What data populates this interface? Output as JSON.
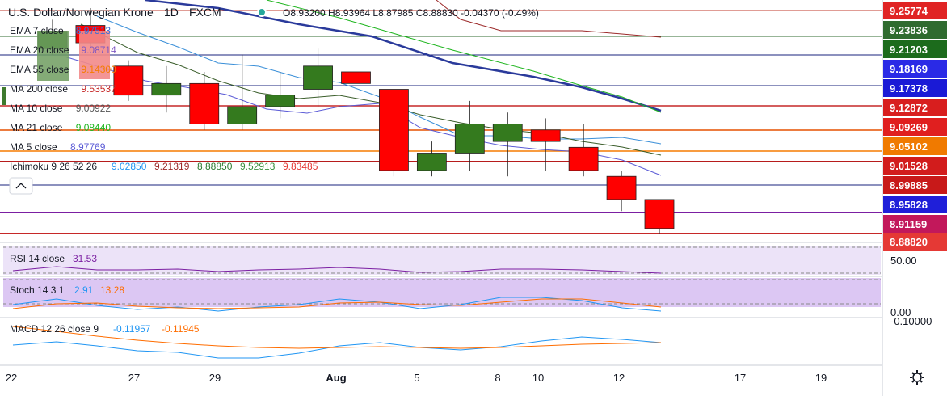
{
  "header": {
    "symbol": "U.S. Dollar/Norwegian Krone",
    "interval": "1D",
    "source": "FXCM",
    "ohlc": {
      "O": "8.93200",
      "H": "8.93964",
      "L": "8.87985",
      "C": "8.88830",
      "change": "-0.04370 (-0.49%)"
    },
    "ohlc_text": "O8.93200 H8.93964 L8.87985 C8.88830 -0.04370 (-0.49%)"
  },
  "legend": [
    {
      "label": "EMA 7 close",
      "value": "8.97513",
      "color": "#3a6fd8"
    },
    {
      "label": "EMA 20 close",
      "value": "9.08714",
      "color": "#7e57c2"
    },
    {
      "label": "EMA 55 close",
      "value": "9.14300",
      "color": "#f57c00"
    },
    {
      "label": "MA 200 close",
      "value": "9.53537",
      "color": "#c62828"
    },
    {
      "label": "MA 10 close",
      "value": "9.00922",
      "color": "#555555"
    },
    {
      "label": "MA 21 close",
      "value": "9.08440",
      "color": "#1eb51e"
    },
    {
      "label": "MA 5 close",
      "value": "8.97769",
      "color": "#5b5bd6"
    }
  ],
  "ichimoku": {
    "label": "Ichimoku 9 26 52 26",
    "values": [
      "9.02850",
      "9.21319",
      "8.88850",
      "9.52913",
      "9.83485"
    ],
    "colors": [
      "#2196f3",
      "#9c2a2a",
      "#2e7d32",
      "#388e3c",
      "#e53935"
    ]
  },
  "price_axis": [
    {
      "value": "9.25774",
      "bg": "#e02424"
    },
    {
      "value": "9.23836",
      "bg": "#2f6b2f"
    },
    {
      "value": "9.21203",
      "bg": "#1c6b1c"
    },
    {
      "value": "9.18169",
      "bg": "#2a2ae6"
    },
    {
      "value": "9.17378",
      "bg": "#1a1ad6"
    },
    {
      "value": "9.12872",
      "bg": "#d81e1e"
    },
    {
      "value": "9.09269",
      "bg": "#e01f1f"
    },
    {
      "value": "9.05102",
      "bg": "#f07a00"
    },
    {
      "value": "9.01528",
      "bg": "#d21c1c"
    },
    {
      "value": "8.99885",
      "bg": "#c81919"
    },
    {
      "value": "8.95828",
      "bg": "#1f1fd9"
    },
    {
      "value": "8.91159",
      "bg": "#c2185b"
    },
    {
      "value": "8.88820",
      "bg": "#e53935"
    }
  ],
  "rsi": {
    "label": "RSI 14 close",
    "value": "31.53",
    "axis_label": "50.00"
  },
  "stoch": {
    "label": "Stoch 14 3 1",
    "k": "2.91",
    "d": "13.28",
    "axis_label": "0.00"
  },
  "macd": {
    "label": "MACD 12 26 close 9",
    "macd": "-0.11957",
    "signal": "-0.11945",
    "axis_label": "-0.10000"
  },
  "time_axis": [
    "22",
    "27",
    "29",
    "Aug",
    "5",
    "8",
    "10",
    "12",
    "17",
    "19"
  ],
  "colors": {
    "up": "#347a1e",
    "down": "#ff0000",
    "rsi_bg": "#e9dff7",
    "stoch_bg": "#dcc7f3"
  },
  "icons": {
    "collapse": "chevron-up-icon",
    "settings": "gear-icon"
  },
  "chart_data": {
    "type": "candlestick",
    "title": "U.S. Dollar/Norwegian Krone 1D FXCM",
    "x": [
      "Jul 23",
      "Jul 24",
      "Jul 26",
      "Jul 27",
      "Jul 28",
      "Jul 29",
      "Jul 30",
      "Jul 31",
      "Aug 1",
      "Aug 2",
      "Aug 5",
      "Aug 6",
      "Aug 7",
      "Aug 9",
      "Aug 10",
      "Aug 12",
      "Aug 13"
    ],
    "ohlc": [
      {
        "o": 9.2,
        "h": 9.25,
        "l": 9.19,
        "c": 9.23
      },
      {
        "o": 9.24,
        "h": 9.27,
        "l": 9.2,
        "c": 9.21
      },
      {
        "o": 9.17,
        "h": 9.18,
        "l": 9.11,
        "c": 9.12
      },
      {
        "o": 9.12,
        "h": 9.17,
        "l": 9.09,
        "c": 9.14
      },
      {
        "o": 9.14,
        "h": 9.16,
        "l": 9.06,
        "c": 9.07
      },
      {
        "o": 9.07,
        "h": 9.19,
        "l": 9.06,
        "c": 9.1
      },
      {
        "o": 9.1,
        "h": 9.16,
        "l": 9.08,
        "c": 9.12
      },
      {
        "o": 9.13,
        "h": 9.2,
        "l": 9.1,
        "c": 9.17
      },
      {
        "o": 9.16,
        "h": 9.19,
        "l": 9.13,
        "c": 9.14
      },
      {
        "o": 9.13,
        "h": 9.13,
        "l": 8.98,
        "c": 8.99
      },
      {
        "o": 8.99,
        "h": 9.04,
        "l": 8.98,
        "c": 9.02
      },
      {
        "o": 9.02,
        "h": 9.11,
        "l": 8.99,
        "c": 9.07
      },
      {
        "o": 9.04,
        "h": 9.09,
        "l": 8.98,
        "c": 9.07
      },
      {
        "o": 9.06,
        "h": 9.08,
        "l": 8.99,
        "c": 9.04
      },
      {
        "o": 9.03,
        "h": 9.07,
        "l": 8.98,
        "c": 8.99
      },
      {
        "o": 8.98,
        "h": 8.99,
        "l": 8.92,
        "c": 8.94
      },
      {
        "o": 8.94,
        "h": 8.94,
        "l": 8.88,
        "c": 8.89
      }
    ],
    "ylim": [
      8.88,
      9.27
    ],
    "x_ticks": [
      "22",
      "27",
      "29",
      "Aug",
      "5",
      "8",
      "10",
      "12",
      "17",
      "19"
    ]
  }
}
